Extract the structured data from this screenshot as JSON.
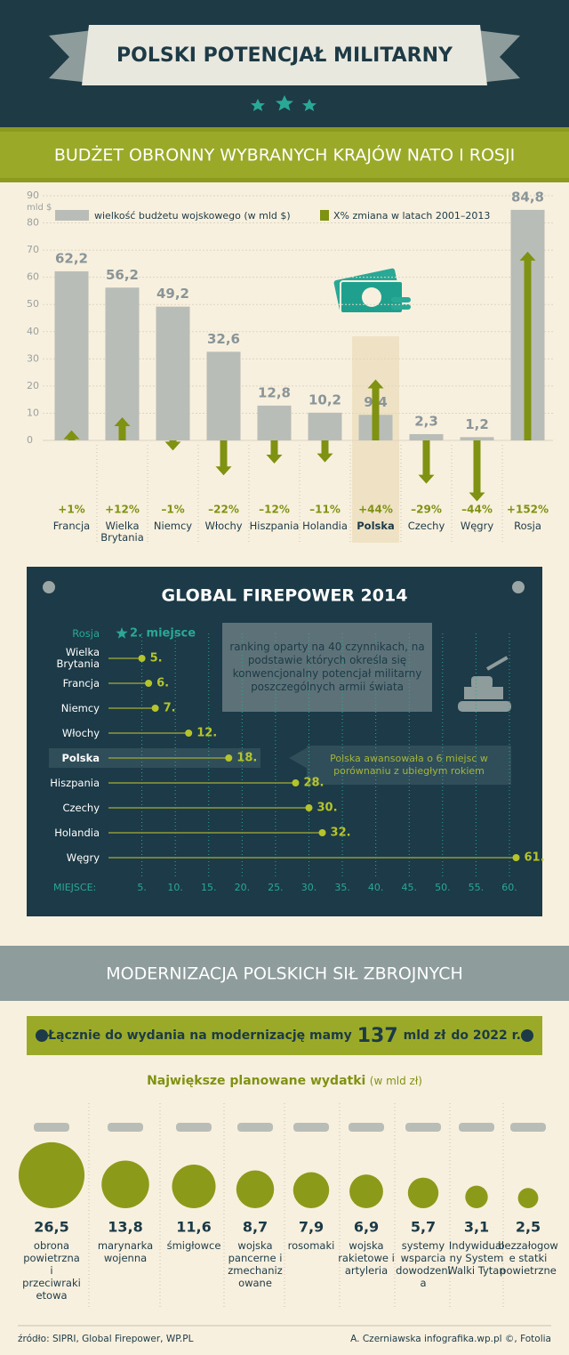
{
  "header": {
    "title": "POLSKI POTENCJAŁ MILITARNY"
  },
  "chart_data": [
    {
      "type": "bar",
      "title": "BUDŻET OBRONNY WYBRANYCH KRAJÓW NATO I ROSJI",
      "y_label": "mld $",
      "categories": [
        "Francja",
        "Wielka Brytania",
        "Niemcy",
        "Włochy",
        "Hiszpania",
        "Holandia",
        "Polska",
        "Czechy",
        "Węgry",
        "Rosja"
      ],
      "series": [
        {
          "name": "wielkość budżetu wojskowego (w mld $)",
          "color": "#b9bdb7",
          "values": [
            62.2,
            56.2,
            49.2,
            32.6,
            12.8,
            10.2,
            9.4,
            2.3,
            1.2,
            84.8
          ],
          "value_labels": [
            "62,2",
            "56,2",
            "49,2",
            "32,6",
            "12,8",
            "10,2",
            "9,4",
            "2,3",
            "1,2",
            "84,8"
          ]
        },
        {
          "name": "X% zmiana w latach 2001–2013",
          "color": "#7f9212",
          "values": [
            1,
            12,
            -1,
            -22,
            -12,
            -11,
            44,
            -29,
            -44,
            152
          ],
          "value_labels": [
            "+1%",
            "+12%",
            "–1%",
            "–22%",
            "–12%",
            "–11%",
            "+44%",
            "–29%",
            "–44%",
            "+152%"
          ]
        }
      ],
      "ylim": [
        0,
        90
      ],
      "yticks": [
        0,
        10,
        20,
        30,
        40,
        50,
        60,
        70,
        80,
        90
      ],
      "grid": true,
      "highlight": "Polska"
    },
    {
      "type": "dot",
      "title": "GLOBAL FIREPOWER 2014",
      "x_label": "MIEJSCE:",
      "categories": [
        "Rosja",
        "Wielka Brytania",
        "Francja",
        "Niemcy",
        "Włochy",
        "Polska",
        "Hiszpania",
        "Czechy",
        "Holandia",
        "Węgry"
      ],
      "values": [
        2,
        5,
        6,
        7,
        12,
        18,
        28,
        30,
        32,
        61
      ],
      "value_labels": [
        "2. miejsce",
        "5.",
        "6.",
        "7.",
        "12.",
        "18.",
        "28.",
        "30.",
        "32.",
        "61."
      ],
      "color": "#b5c42a",
      "xlim": [
        0,
        60
      ],
      "xticks": [
        {
          "value": 5,
          "label": "5."
        },
        {
          "value": 10,
          "label": "10."
        },
        {
          "value": 15,
          "label": "15."
        },
        {
          "value": 20,
          "label": "20."
        },
        {
          "value": 25,
          "label": "25."
        },
        {
          "value": 30,
          "label": "30."
        },
        {
          "value": 35,
          "label": "35."
        },
        {
          "value": 40,
          "label": "40."
        },
        {
          "value": 45,
          "label": "45."
        },
        {
          "value": 50,
          "label": "50."
        },
        {
          "value": 55,
          "label": "55."
        },
        {
          "value": 60,
          "label": "60."
        }
      ],
      "highlight": "Polska",
      "annotations": [
        "ranking oparty na 40 czynnikach, na podstawie których określa się konwencjonalny potencjał militarny poszczególnych armii świata",
        "Polska awansowała o 6 miejsc w porównaniu z ubiegłym rokiem"
      ]
    },
    {
      "type": "bubble",
      "title": "Największe planowane wydatki",
      "subtitle": "(w mld zł)",
      "color": "#8c9a1a",
      "categories": [
        "obrona powietrzna i przeciwrakietowa",
        "marynarka wojenna",
        "śmigłowce",
        "wojska pancerne i zmechanizowane",
        "rosomaki",
        "wojska rakietowe i artyleria",
        "systemy wsparcia dowodzenia",
        "Indywidualny System Walki Tytan",
        "bezzałogowe statki powietrzne"
      ],
      "values": [
        26.5,
        13.8,
        11.6,
        8.7,
        7.9,
        6.9,
        5.7,
        3.1,
        2.5
      ],
      "value_labels": [
        "26,5",
        "13,8",
        "11,6",
        "8,7",
        "7,9",
        "6,9",
        "5,7",
        "3,1",
        "2,5"
      ]
    }
  ],
  "modernization": {
    "title": "MODERNIZACJA POLSKICH SIŁ ZBROJNYCH",
    "banner": {
      "prefix": "Łącznie do wydania na modernizację mamy",
      "amount": "137",
      "unit": "mld zł",
      "suffix": "do 2022 r."
    }
  },
  "footer": {
    "source": "źródło: SIPRI, Global Firepower, WP.PL",
    "credit": "A. Czerniawska infografika.wp.pl ©, Fotolia"
  }
}
